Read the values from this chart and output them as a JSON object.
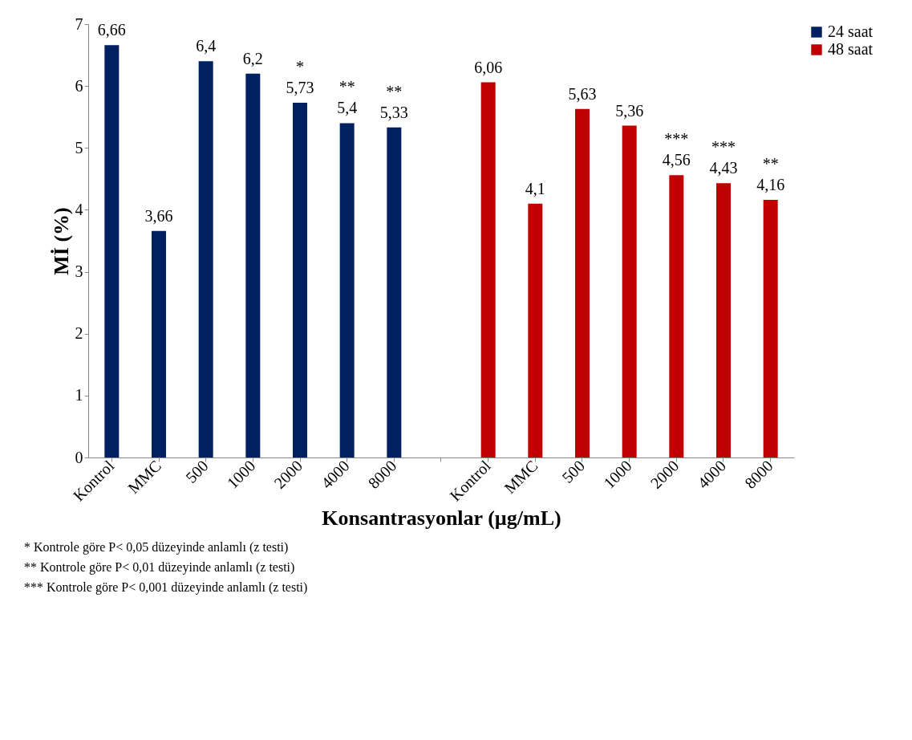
{
  "chart_data": {
    "type": "bar",
    "xlabel": "Konsantrasyonlar (µg/mL)",
    "ylabel": "Mİ (%)",
    "categories": [
      "Kontrol",
      "MMC",
      "500",
      "1000",
      "2000",
      "4000",
      "8000",
      null,
      "Kontrol",
      "MMC",
      "500",
      "1000",
      "2000",
      "4000",
      "8000"
    ],
    "series": [
      {
        "name": "24 saat",
        "color": "#002060",
        "values": [
          6.66,
          3.66,
          6.4,
          6.2,
          5.73,
          5.4,
          5.33,
          null,
          null,
          null,
          null,
          null,
          null,
          null,
          null
        ],
        "value_labels": [
          "6,66",
          "3,66",
          "6,4",
          "6,2",
          "5,73",
          "5,4",
          "5,33",
          null,
          null,
          null,
          null,
          null,
          null,
          null,
          null
        ]
      },
      {
        "name": "48 saat",
        "color": "#c00000",
        "values": [
          null,
          null,
          null,
          null,
          null,
          null,
          null,
          null,
          6.06,
          4.1,
          5.63,
          5.36,
          4.56,
          4.43,
          4.16
        ],
        "value_labels": [
          null,
          null,
          null,
          null,
          null,
          null,
          null,
          null,
          "6,06",
          "4,1",
          "5,63",
          "5,36",
          "4,56",
          "4,43",
          "4,16"
        ]
      }
    ],
    "ylim": [
      0,
      7
    ],
    "yticks": [
      0,
      1,
      2,
      3,
      4,
      5,
      6,
      7
    ],
    "grid": false,
    "legend": "right",
    "annotations": [
      {
        "text": "*",
        "x": "2000",
        "y": 5.73
      },
      {
        "text": "**",
        "x": "4000",
        "y": 5.4
      },
      {
        "text": "**",
        "x": "8000",
        "y": 5.33
      },
      {
        "text": "***",
        "y": 4.56
      },
      {
        "text": "***",
        "y": 4.43
      },
      {
        "text": "**",
        "y": 4.16
      },
      "* Kontrole göre P< 0,05 düzeyinde anlamlı (z testi)",
      "** Kontrole göre P< 0,01 düzeyinde anlamlı (z testi)",
      "*** Kontrole göre P< 0,001 düzeyinde anlamlı (z testi)"
    ]
  }
}
